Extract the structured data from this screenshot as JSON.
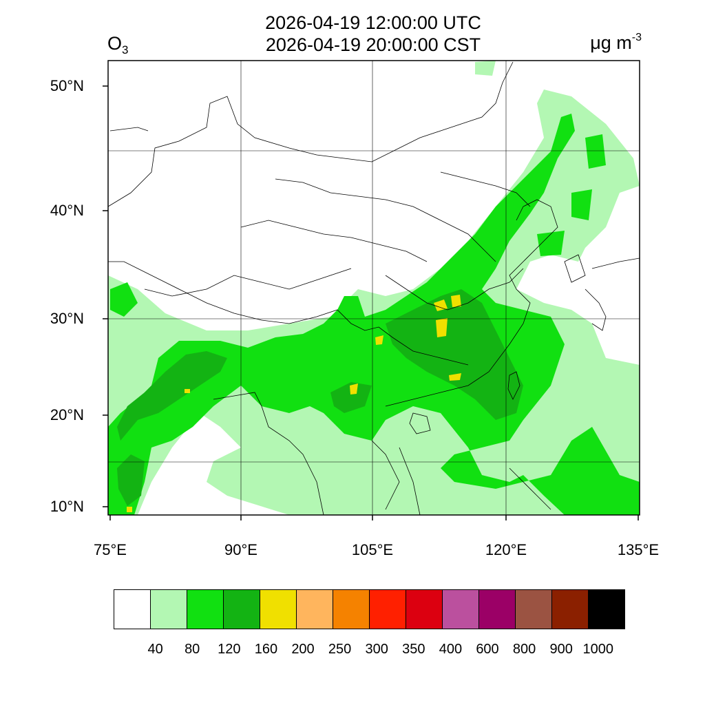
{
  "header": {
    "title_utc": "2026-04-19 12:00:00 UTC",
    "title_cst": "2026-04-19 20:00:00 CST",
    "species_base": "O",
    "species_sub": "3",
    "units_base": "μg m",
    "units_sup": "-3"
  },
  "axes": {
    "lat_labels": [
      "50°N",
      "40°N",
      "30°N",
      "20°N",
      "10°N"
    ],
    "lon_labels": [
      "75°E",
      "90°E",
      "105°E",
      "120°E",
      "135°E"
    ]
  },
  "legend": {
    "colors": [
      "#ffffff",
      "#b3f7b3",
      "#11e011",
      "#13b313",
      "#f0e000",
      "#ffb55d",
      "#f58200",
      "#ff2000",
      "#dc0010",
      "#bb509e",
      "#9b0066",
      "#9b5342",
      "#8b2000",
      "#000000"
    ],
    "labels": [
      "40",
      "80",
      "120",
      "160",
      "200",
      "250",
      "300",
      "350",
      "400",
      "600",
      "800",
      "900",
      "1000"
    ]
  },
  "colors": {
    "light_green": "#b3f7b3",
    "green": "#11e011",
    "dark_green": "#13b313",
    "yellow": "#f0e000"
  }
}
